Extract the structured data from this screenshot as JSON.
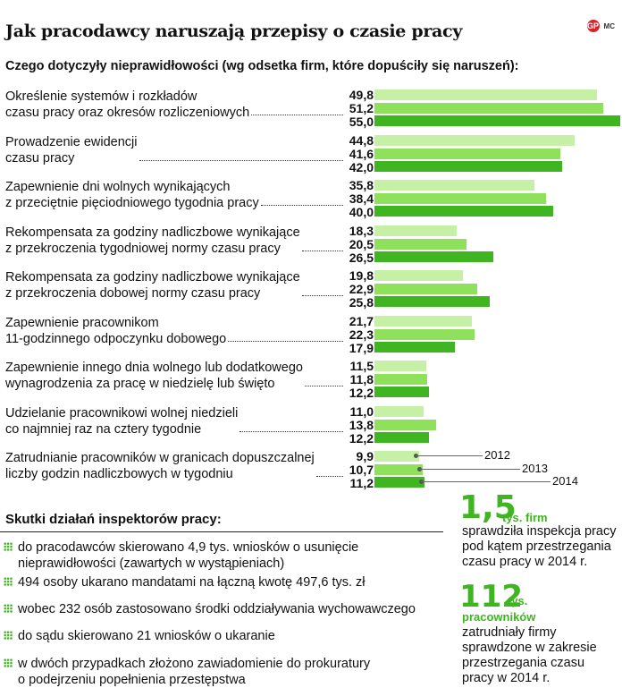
{
  "title": "Jak pracodawcy naruszają przepisy o czasie pracy",
  "brand": {
    "mark1": "GP",
    "mark2": "MC"
  },
  "chart_data": {
    "type": "bar",
    "orientation": "horizontal",
    "subtitle": "Czego dotyczyły nieprawidłowości (wg odsetka firm, które dopuściły się naruszeń):",
    "series_names": [
      "2012",
      "2013",
      "2014"
    ],
    "series_colors": [
      "#c6f0a6",
      "#8fe05a",
      "#3fb521"
    ],
    "categories": [
      {
        "line1": "Określenie systemów i rozkładów",
        "line2": "czasu pracy oraz okresów rozliczeniowych"
      },
      {
        "line1": "Prowadzenie ewidencji",
        "line2": "czasu pracy"
      },
      {
        "line1": "Zapewnienie dni wolnych wynikających",
        "line2": "z przeciętnie pięciodniowego tygodnia pracy"
      },
      {
        "line1": "Rekompensata za godziny nadliczbowe wynikające",
        "line2": "z przekroczenia tygodniowej normy czasu pracy"
      },
      {
        "line1": "Rekompensata za godziny nadliczbowe wynikające",
        "line2": "z przekroczenia dobowej normy czasu pracy"
      },
      {
        "line1": "Zapewnienie pracownikom",
        "line2": "11-godzinnego odpoczynku dobowego"
      },
      {
        "line1": "Zapewnienie innego dnia wolnego lub dodatkowego",
        "line2": "wynagrodzenia za pracę w niedzielę lub święto"
      },
      {
        "line1": "Udzielanie pracownikowi wolnej niedzieli",
        "line2": "co najmniej raz na cztery tygodnie"
      },
      {
        "line1": "Zatrudnianie pracowników w granicach dopuszczalnej",
        "line2": "liczby godzin nadliczbowych w tygodniu"
      }
    ],
    "series": [
      {
        "values": [
          49.8,
          44.8,
          35.8,
          18.3,
          19.8,
          21.7,
          11.5,
          11.0,
          9.9
        ]
      },
      {
        "values": [
          51.2,
          41.6,
          38.4,
          20.5,
          22.9,
          22.3,
          11.8,
          13.8,
          10.7
        ]
      },
      {
        "values": [
          55.0,
          42.0,
          40.0,
          26.5,
          25.8,
          17.9,
          12.2,
          12.2,
          11.2
        ]
      }
    ],
    "value_labels": [
      [
        "49,8",
        "51,2",
        "55,0"
      ],
      [
        "44,8",
        "41,6",
        "42,0"
      ],
      [
        "35,8",
        "38,4",
        "40,0"
      ],
      [
        "18,3",
        "20,5",
        "26,5"
      ],
      [
        "19,8",
        "22,9",
        "25,8"
      ],
      [
        "21,7",
        "22,3",
        "17,9"
      ],
      [
        "11,5",
        "11,8",
        "12,2"
      ],
      [
        "11,0",
        "13,8",
        "12,2"
      ],
      [
        "9,9",
        "10,7",
        "11,2"
      ]
    ],
    "xlim": [
      0,
      55
    ]
  },
  "effects": {
    "title": "Skutki działań inspektorów pracy:",
    "items": [
      {
        "line1": "do pracodawców skierowano 4,9 tys. wniosków o usunięcie",
        "line2": "nieprawidłowości (zawartych w wystąpieniach)"
      },
      {
        "line1": "494 osoby ukarano mandatami na łączną kwotę 497,6 tys. zł",
        "line2": ""
      },
      {
        "line1": "wobec 232 osób zastosowano środki oddziaływania wychowawczego",
        "line2": ""
      },
      {
        "line1": "do sądu skierowano 21 wniosków o ukaranie",
        "line2": ""
      },
      {
        "line1": "w dwóch przypadkach złożono zawiadomienie do prokuratury",
        "line2": "o podejrzeniu popełnienia przestępstwa"
      }
    ]
  },
  "stats": [
    {
      "value": "1,5",
      "unit": "tys. firm",
      "unit2": "",
      "desc": [
        "sprawdziła inspekcja pracy",
        "pod kątem przestrzegania",
        "czasu pracy w 2014 r."
      ]
    },
    {
      "value": "112",
      "unit": "tys.",
      "unit2": "pracowników",
      "desc": [
        "zatrudniały firmy",
        "sprawdzone w zakresie",
        "przestrzegania czasu",
        "pracy w 2014 r."
      ]
    }
  ]
}
